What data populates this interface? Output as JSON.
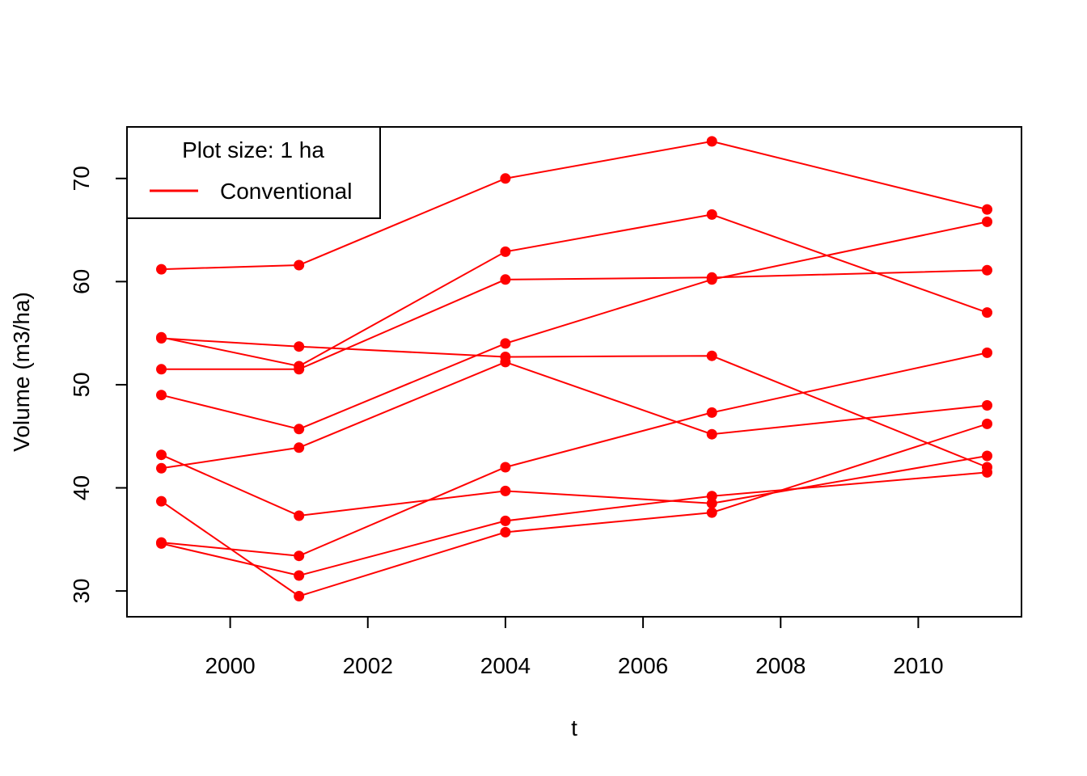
{
  "chart_data": {
    "type": "line",
    "title": "",
    "xlabel": "t",
    "ylabel": "Volume (m3/ha)",
    "xlim": [
      1998.5,
      2011.5
    ],
    "ylim": [
      27.5,
      75.0
    ],
    "x_ticks": [
      2000,
      2002,
      2004,
      2006,
      2008,
      2010
    ],
    "y_ticks": [
      30,
      40,
      50,
      60,
      70
    ],
    "x": [
      1999,
      2001,
      2004,
      2007,
      2011
    ],
    "series_color": "#ff0000",
    "legend": {
      "title": "Plot size: 1 ha",
      "label": "Conventional",
      "position": "top-left"
    },
    "series": [
      {
        "values": [
          61.2,
          61.6,
          70.0,
          73.6,
          67.0
        ]
      },
      {
        "values": [
          54.6,
          51.8,
          62.9,
          66.5,
          57.0
        ]
      },
      {
        "values": [
          54.5,
          53.7,
          52.7,
          52.8,
          42.0
        ]
      },
      {
        "values": [
          51.5,
          51.5,
          60.2,
          60.4,
          61.1
        ]
      },
      {
        "values": [
          49.0,
          45.7,
          54.0,
          60.2,
          65.8
        ]
      },
      {
        "values": [
          43.2,
          37.3,
          39.7,
          38.5,
          43.1
        ]
      },
      {
        "values": [
          41.9,
          43.9,
          52.2,
          45.2,
          48.0
        ]
      },
      {
        "values": [
          38.7,
          29.5,
          35.7,
          37.6,
          46.2
        ]
      },
      {
        "values": [
          34.7,
          33.4,
          42.0,
          47.3,
          53.1
        ]
      },
      {
        "values": [
          34.6,
          31.5,
          36.8,
          39.2,
          41.5
        ]
      }
    ]
  }
}
